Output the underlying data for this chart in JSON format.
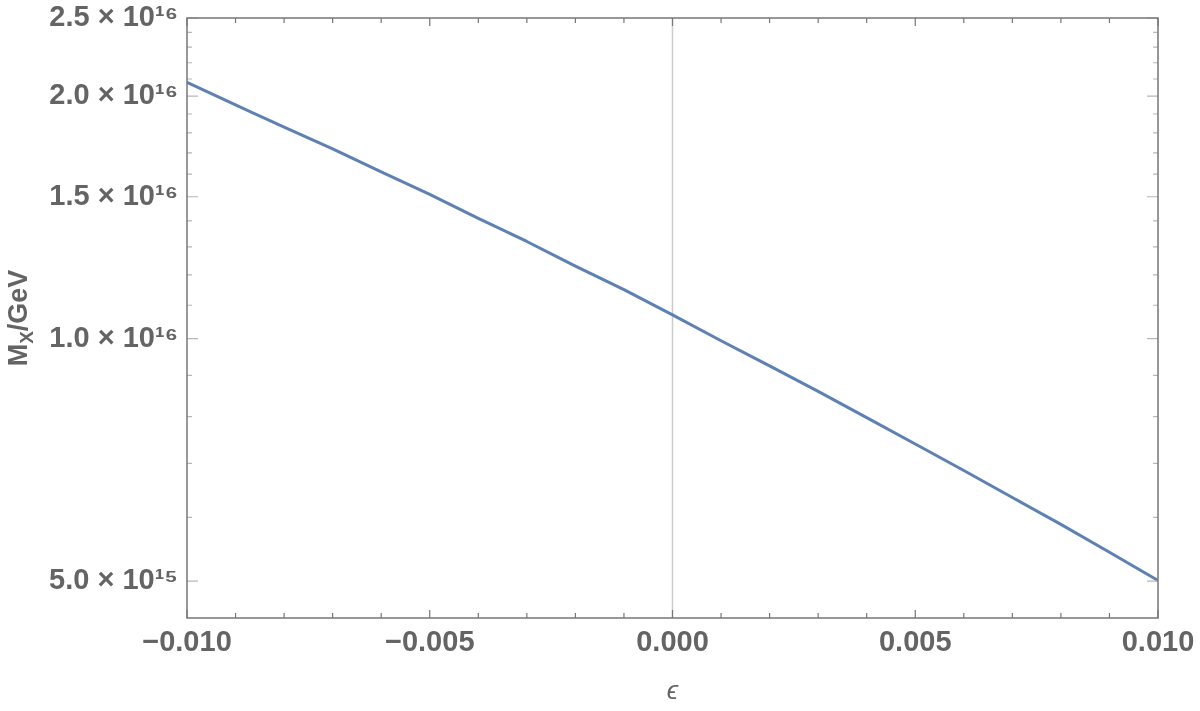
{
  "chart_data": {
    "type": "line",
    "xlabel": "ϵ",
    "ylabel": "M$_{X}$/GeV",
    "log": true,
    "marker": "none",
    "line_style": "solid",
    "x": [
      -0.01,
      -0.009,
      -0.008,
      -0.007,
      -0.006,
      -0.005,
      -0.004,
      -0.003,
      -0.002,
      -0.001,
      0,
      0.001,
      0.002,
      0.003,
      0.004,
      0.005,
      0.006,
      0.007,
      0.008,
      0.009,
      0.01
    ],
    "series": [
      {
        "color": "#5e81b5",
        "values": [
          2.08e+16,
          1.95e+16,
          1.83e+16,
          1.72e+16,
          1.61e+16,
          1.51e+16,
          1.41e+16,
          1.32e+16,
          1.23e+16,
          1.15e+16,
          1.07e+16,
          9940000000000000.0,
          9250000000000000.0,
          8600000000000000.0,
          7980000000000000.0,
          7400000000000000.0,
          6860000000000000.0,
          6350000000000000.0,
          5880000000000000.0,
          5430000000000000.0,
          5010000000000000.0
        ]
      }
    ],
    "xlim": [
      -0.01,
      0.01
    ],
    "ylim": [
      4500000000000000.0,
      2.5e+16
    ],
    "xticks": [
      {
        "value": -0.01,
        "label": "−0.010"
      },
      {
        "value": -0.009,
        "label": null
      },
      {
        "value": -0.008,
        "label": null
      },
      {
        "value": -0.007,
        "label": null
      },
      {
        "value": -0.006,
        "label": null
      },
      {
        "value": -0.005,
        "label": "−0.005"
      },
      {
        "value": -0.004,
        "label": null
      },
      {
        "value": -0.003,
        "label": null
      },
      {
        "value": -0.002,
        "label": null
      },
      {
        "value": -0.001,
        "label": null
      },
      {
        "value": 0,
        "label": "0.000"
      },
      {
        "value": 0.001,
        "label": null
      },
      {
        "value": 0.002,
        "label": null
      },
      {
        "value": 0.003,
        "label": null
      },
      {
        "value": 0.004,
        "label": null
      },
      {
        "value": 0.005,
        "label": "0.005"
      },
      {
        "value": 0.006,
        "label": null
      },
      {
        "value": 0.007,
        "label": null
      },
      {
        "value": 0.008,
        "label": null
      },
      {
        "value": 0.009,
        "label": null
      },
      {
        "value": 0.01,
        "label": "0.010"
      }
    ],
    "yticks": [
      {
        "value": 5000000000000000.0,
        "label": "5.0 × 10¹⁵"
      },
      {
        "value": 6000000000000000.0,
        "label": null
      },
      {
        "value": 7000000000000000.0,
        "label": null
      },
      {
        "value": 8000000000000000.0,
        "label": null
      },
      {
        "value": 9000000000000000.0,
        "label": null
      },
      {
        "value": 1e+16,
        "label": "1.0 × 10¹⁶"
      },
      {
        "value": 1.1e+16,
        "label": null
      },
      {
        "value": 1.2e+16,
        "label": null
      },
      {
        "value": 1.3e+16,
        "label": null
      },
      {
        "value": 1.4e+16,
        "label": null
      },
      {
        "value": 1.5e+16,
        "label": "1.5 × 10¹⁶"
      },
      {
        "value": 1.6e+16,
        "label": null
      },
      {
        "value": 1.7e+16,
        "label": null
      },
      {
        "value": 1.8e+16,
        "label": null
      },
      {
        "value": 1.9e+16,
        "label": null
      },
      {
        "value": 2e+16,
        "label": "2.0 × 10¹⁶"
      },
      {
        "value": 2.1e+16,
        "label": null
      },
      {
        "value": 2.2e+16,
        "label": null
      },
      {
        "value": 2.3e+16,
        "label": null
      },
      {
        "value": 2.4e+16,
        "label": null
      },
      {
        "value": 2.5e+16,
        "label": "2.5 × 10¹⁶"
      }
    ],
    "ref_lines": [
      {
        "axis": "x",
        "value": 0,
        "color": "#cccccc"
      }
    ]
  }
}
